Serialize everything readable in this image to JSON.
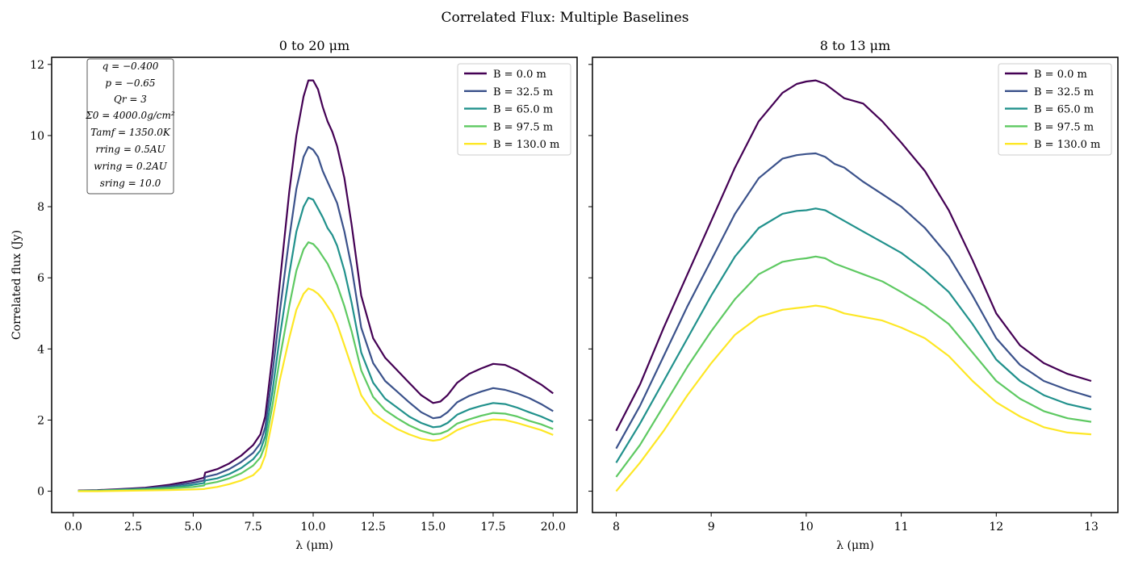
{
  "figure": {
    "suptitle": "Correlated Flux: Multiple Baselines"
  },
  "chart_data": [
    {
      "type": "line",
      "title": "0 to 20 μm",
      "xlabel": "λ (μm)",
      "ylabel": "Correlated flux (Jy)",
      "xlim": [
        -0.9,
        21.0
      ],
      "ylim": [
        -0.6,
        12.2
      ],
      "xticks": [
        0,
        2.5,
        5,
        7.5,
        10,
        12.5,
        15,
        17.5,
        20
      ],
      "xtick_labels": [
        "0.0",
        "2.5",
        "5.0",
        "7.5",
        "10.0",
        "12.5",
        "15.0",
        "17.5",
        "20.0"
      ],
      "yticks": [
        0,
        2,
        4,
        6,
        8,
        10,
        12
      ],
      "ytick_labels": [
        "0",
        "2",
        "4",
        "6",
        "8",
        "10",
        "12"
      ],
      "grid": false,
      "legend": "top-right",
      "annotation": [
        "q = −0.400",
        "p = −0.65",
        "Qr = 3",
        "Σ0 = 4000.0g/cm²",
        "Tamf = 1350.0K",
        "rring = 0.5AU",
        "wring = 0.2AU",
        "sring = 10.0"
      ],
      "x": [
        0.2,
        1.0,
        2.0,
        3.0,
        4.0,
        5.0,
        5.45,
        5.5,
        6.0,
        6.5,
        7.0,
        7.5,
        7.8,
        8.0,
        8.3,
        8.6,
        9.0,
        9.3,
        9.6,
        9.8,
        10.0,
        10.2,
        10.4,
        10.6,
        10.8,
        11.0,
        11.3,
        11.6,
        12.0,
        12.5,
        13.0,
        13.5,
        14.0,
        14.5,
        15.0,
        15.3,
        15.6,
        16.0,
        16.5,
        17.0,
        17.5,
        18.0,
        18.5,
        19.0,
        19.5,
        20.0
      ],
      "series": [
        {
          "name": "B = 0.0 m",
          "color": "#440154",
          "values": [
            0.02,
            0.03,
            0.06,
            0.1,
            0.18,
            0.3,
            0.38,
            0.52,
            0.62,
            0.78,
            1.0,
            1.3,
            1.6,
            2.1,
            3.8,
            5.8,
            8.4,
            10.0,
            11.1,
            11.55,
            11.55,
            11.3,
            10.8,
            10.4,
            10.1,
            9.7,
            8.8,
            7.5,
            5.5,
            4.3,
            3.75,
            3.4,
            3.05,
            2.7,
            2.48,
            2.52,
            2.7,
            3.05,
            3.3,
            3.45,
            3.58,
            3.55,
            3.4,
            3.2,
            3.0,
            2.75
          ]
        },
        {
          "name": "B = 32.5 m",
          "color": "#3b528b",
          "values": [
            0.01,
            0.02,
            0.05,
            0.08,
            0.14,
            0.24,
            0.3,
            0.4,
            0.48,
            0.62,
            0.82,
            1.08,
            1.35,
            1.8,
            3.3,
            5.0,
            7.1,
            8.5,
            9.4,
            9.68,
            9.6,
            9.4,
            9.0,
            8.7,
            8.4,
            8.1,
            7.3,
            6.3,
            4.6,
            3.6,
            3.1,
            2.8,
            2.5,
            2.22,
            2.05,
            2.08,
            2.22,
            2.5,
            2.68,
            2.8,
            2.9,
            2.85,
            2.75,
            2.62,
            2.45,
            2.25
          ]
        },
        {
          "name": "B = 65.0 m",
          "color": "#21918c",
          "values": [
            0.01,
            0.02,
            0.04,
            0.06,
            0.1,
            0.18,
            0.23,
            0.3,
            0.36,
            0.48,
            0.65,
            0.9,
            1.15,
            1.55,
            2.8,
            4.3,
            6.1,
            7.3,
            8.0,
            8.25,
            8.2,
            7.95,
            7.7,
            7.4,
            7.2,
            6.9,
            6.2,
            5.3,
            3.9,
            3.05,
            2.6,
            2.35,
            2.1,
            1.92,
            1.8,
            1.82,
            1.92,
            2.15,
            2.3,
            2.4,
            2.48,
            2.45,
            2.35,
            2.22,
            2.1,
            1.95
          ]
        },
        {
          "name": "B = 97.5 m",
          "color": "#5ec962",
          "values": [
            0.01,
            0.01,
            0.03,
            0.05,
            0.08,
            0.12,
            0.16,
            0.2,
            0.26,
            0.36,
            0.5,
            0.72,
            0.95,
            1.3,
            2.4,
            3.7,
            5.2,
            6.2,
            6.8,
            7.0,
            6.95,
            6.8,
            6.6,
            6.4,
            6.1,
            5.8,
            5.2,
            4.5,
            3.4,
            2.65,
            2.28,
            2.05,
            1.85,
            1.7,
            1.6,
            1.62,
            1.7,
            1.9,
            2.02,
            2.12,
            2.2,
            2.18,
            2.1,
            1.98,
            1.88,
            1.75
          ]
        },
        {
          "name": "B = 130.0 m",
          "color": "#fde725",
          "values": [
            0.0,
            0.0,
            0.01,
            0.02,
            0.03,
            0.05,
            0.06,
            0.07,
            0.12,
            0.2,
            0.3,
            0.45,
            0.65,
            1.0,
            2.0,
            3.1,
            4.3,
            5.1,
            5.55,
            5.7,
            5.65,
            5.55,
            5.4,
            5.2,
            5.0,
            4.7,
            4.1,
            3.5,
            2.7,
            2.2,
            1.95,
            1.75,
            1.6,
            1.48,
            1.42,
            1.45,
            1.55,
            1.72,
            1.85,
            1.95,
            2.02,
            2.0,
            1.92,
            1.82,
            1.72,
            1.58
          ]
        }
      ]
    },
    {
      "type": "line",
      "title": "8 to 13 μm",
      "xlabel": "λ (μm)",
      "ylabel": "",
      "xlim": [
        7.75,
        13.28
      ],
      "ylim": [
        -0.6,
        12.2
      ],
      "xticks": [
        8,
        9,
        10,
        11,
        12,
        13
      ],
      "xtick_labels": [
        "8",
        "9",
        "10",
        "11",
        "12",
        "13"
      ],
      "yticks": [
        0,
        2,
        4,
        6,
        8,
        10,
        12
      ],
      "ytick_labels": [
        "",
        "",
        "",
        "",
        "",
        "",
        ""
      ],
      "grid": false,
      "legend": "top-right",
      "x": [
        8.0,
        8.25,
        8.5,
        8.75,
        9.0,
        9.25,
        9.5,
        9.75,
        9.9,
        10.0,
        10.1,
        10.2,
        10.3,
        10.4,
        10.6,
        10.8,
        11.0,
        11.25,
        11.5,
        11.75,
        12.0,
        12.25,
        12.5,
        12.75,
        13.0
      ],
      "series": [
        {
          "name": "B = 0.0 m",
          "color": "#440154",
          "values": [
            1.7,
            3.0,
            4.6,
            6.1,
            7.6,
            9.1,
            10.4,
            11.2,
            11.45,
            11.52,
            11.55,
            11.45,
            11.25,
            11.05,
            10.9,
            10.4,
            9.8,
            9.0,
            7.9,
            6.5,
            5.0,
            4.1,
            3.6,
            3.3,
            3.1
          ]
        },
        {
          "name": "B = 32.5 m",
          "color": "#3b528b",
          "values": [
            1.2,
            2.4,
            3.8,
            5.2,
            6.5,
            7.8,
            8.8,
            9.35,
            9.45,
            9.48,
            9.5,
            9.4,
            9.2,
            9.1,
            8.7,
            8.35,
            8.0,
            7.4,
            6.6,
            5.5,
            4.3,
            3.55,
            3.1,
            2.85,
            2.65
          ]
        },
        {
          "name": "B = 65.0 m",
          "color": "#21918c",
          "values": [
            0.8,
            1.9,
            3.1,
            4.3,
            5.5,
            6.6,
            7.4,
            7.8,
            7.88,
            7.9,
            7.95,
            7.9,
            7.75,
            7.6,
            7.3,
            7.0,
            6.7,
            6.2,
            5.6,
            4.7,
            3.7,
            3.1,
            2.7,
            2.45,
            2.3
          ]
        },
        {
          "name": "B = 97.5 m",
          "color": "#5ec962",
          "values": [
            0.4,
            1.3,
            2.4,
            3.5,
            4.5,
            5.4,
            6.1,
            6.45,
            6.52,
            6.55,
            6.6,
            6.55,
            6.4,
            6.3,
            6.1,
            5.9,
            5.6,
            5.2,
            4.7,
            3.9,
            3.1,
            2.6,
            2.25,
            2.05,
            1.95
          ]
        },
        {
          "name": "B = 130.0 m",
          "color": "#fde725",
          "values": [
            0.0,
            0.8,
            1.7,
            2.7,
            3.6,
            4.4,
            4.9,
            5.1,
            5.15,
            5.18,
            5.22,
            5.18,
            5.1,
            5.0,
            4.9,
            4.8,
            4.6,
            4.3,
            3.8,
            3.1,
            2.5,
            2.1,
            1.8,
            1.65,
            1.6
          ]
        }
      ]
    }
  ]
}
